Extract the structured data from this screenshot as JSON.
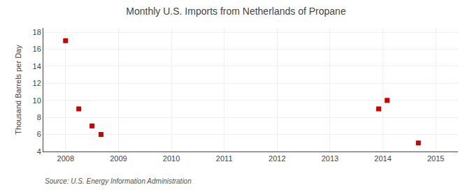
{
  "chart_data": {
    "type": "scatter",
    "title": "Monthly U.S. Imports from Netherlands of Propane",
    "ylabel": "Thousand Barrels per Day",
    "source": "Source: U.S. Energy Information Administration",
    "x": [
      2008.0,
      2008.25,
      2008.5,
      2008.67,
      2013.92,
      2014.08,
      2014.67
    ],
    "values": [
      17,
      9,
      7,
      6,
      9,
      10,
      5
    ],
    "color": "#cc0000",
    "marker": "square",
    "xlim": [
      2007.58,
      2015.42
    ],
    "xticks": [
      2008,
      2009,
      2010,
      2011,
      2012,
      2013,
      2014,
      2015
    ],
    "ylim": [
      4,
      18.5
    ],
    "yticks": [
      4,
      6,
      8,
      10,
      12,
      14,
      16,
      18
    ],
    "grid": true
  }
}
